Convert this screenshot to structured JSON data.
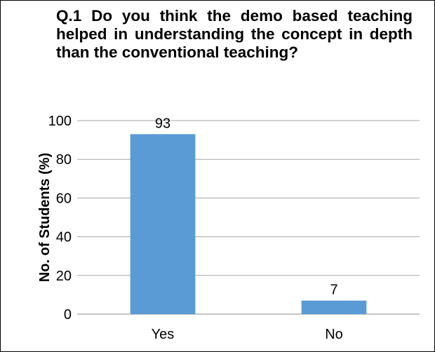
{
  "chart_data": {
    "type": "bar",
    "title": "Q.1 Do you think the demo based teaching helped in understanding the concept in depth than the conventional teaching?",
    "xlabel": "",
    "ylabel": "No. of Students (%)",
    "categories": [
      "Yes",
      "No"
    ],
    "values": [
      93,
      7
    ],
    "data_labels": [
      "93",
      "7"
    ],
    "ylim": [
      0,
      100
    ],
    "yticks": [
      "0",
      "20",
      "40",
      "60",
      "80",
      "100"
    ],
    "grid": true,
    "legend": "none",
    "colors": {
      "bar": "#5b9bd5",
      "grid": "#a6a6a6",
      "axis": "#8c8c8c"
    }
  }
}
